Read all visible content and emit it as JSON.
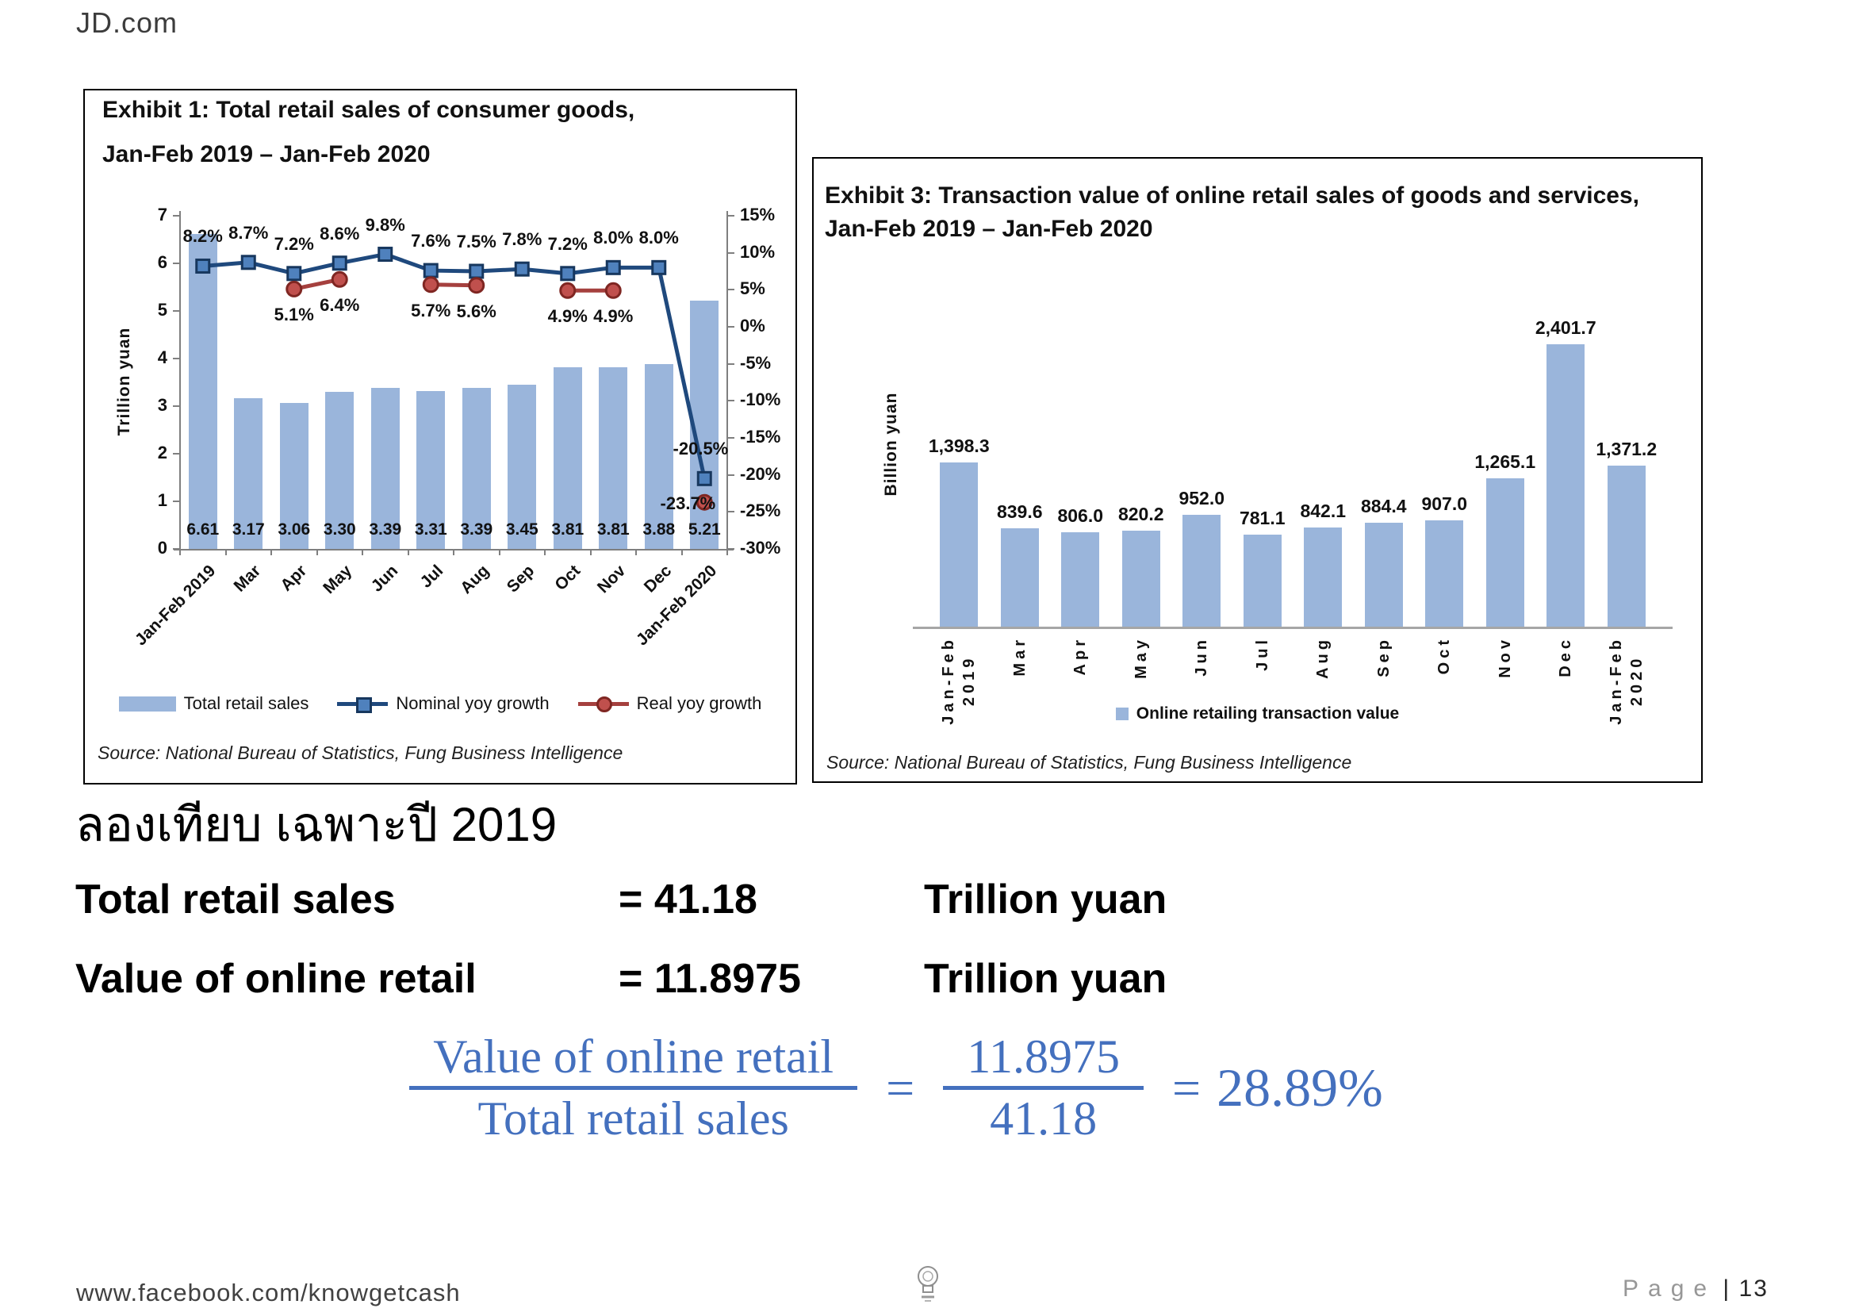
{
  "page": {
    "brand": "JD.com",
    "thai_heading": "ลองเทียบ เฉพาะปี 2019",
    "comparison": {
      "rows": [
        {
          "label": "Total retail sales",
          "value": "= 41.18",
          "unit": "Trillion yuan"
        },
        {
          "label": "Value of online retail",
          "value": "= 11.8975",
          "unit": "Trillion yuan"
        }
      ]
    },
    "formula": {
      "numerator": "Value of online retail",
      "denominator": "Total retail sales",
      "equals": "=",
      "value_numerator": "11.8975",
      "value_denominator": "41.18",
      "result_equals": "=",
      "result": "28.89%",
      "color": "#4470BE"
    },
    "footer": {
      "website": "www.facebook.com/knowgetcash",
      "page_label": "Page",
      "page_number": "| 13",
      "logo": "lightbulb-logo"
    }
  },
  "chart_data": [
    {
      "type": "bar+line combo",
      "title_lines": [
        "Exhibit 1: Total retail sales of consumer goods,",
        "Jan-Feb 2019 – Jan-Feb 2020"
      ],
      "categories": [
        "Jan-Feb 2019",
        "Mar",
        "Apr",
        "May",
        "Jun",
        "Jul",
        "Aug",
        "Sep",
        "Oct",
        "Nov",
        "Dec",
        "Jan-Feb 2020"
      ],
      "left_axis": {
        "label": "Trillion yuan",
        "min": 0,
        "max": 7,
        "tick_step": 1
      },
      "right_axis": {
        "min": -30,
        "max": 15,
        "tick_step": 5,
        "suffix": "%"
      },
      "bar_series": {
        "name": "Total retail sales",
        "color": "#9AB5DB",
        "values": [
          6.61,
          3.17,
          3.06,
          3.3,
          3.39,
          3.31,
          3.39,
          3.45,
          3.81,
          3.81,
          3.88,
          5.21
        ],
        "labels": [
          "6.61",
          "3.17",
          "3.06",
          "3.30",
          "3.39",
          "3.31",
          "3.39",
          "3.45",
          "3.81",
          "3.81",
          "3.88",
          "5.21"
        ]
      },
      "line_series": [
        {
          "name": "Nominal yoy growth",
          "color": "#1F497D",
          "marker": "square",
          "marker_fill": "#4F81BD",
          "marker_edge": "#17375E",
          "values": [
            8.2,
            8.7,
            7.2,
            8.6,
            9.8,
            7.6,
            7.5,
            7.8,
            7.2,
            8.0,
            8.0,
            -20.5
          ],
          "labels": [
            "8.2%",
            "8.7%",
            "7.2%",
            "8.6%",
            "9.8%",
            "7.6%",
            "7.5%",
            "7.8%",
            "7.2%",
            "8.0%",
            "8.0%",
            "-20.5%"
          ]
        },
        {
          "name": "Real yoy growth",
          "color": "#A5403E",
          "marker": "circle",
          "marker_fill": "#C0504D",
          "marker_edge": "#7F2622",
          "values": [
            null,
            null,
            5.1,
            6.4,
            null,
            5.7,
            5.6,
            null,
            4.9,
            4.9,
            null,
            -23.7
          ],
          "labels": [
            null,
            null,
            "5.1%",
            "6.4%",
            null,
            "5.7%",
            "5.6%",
            null,
            "4.9%",
            "4.9%",
            null,
            "-23.7%"
          ]
        }
      ],
      "legend": [
        "Total retail sales",
        "Nominal yoy growth",
        "Real yoy growth"
      ],
      "grid": false,
      "source": "Source: National Bureau of Statistics, Fung Business Intelligence"
    },
    {
      "type": "bar",
      "title_lines": [
        "Exhibit 3: Transaction value of online retail sales of goods and services,",
        "Jan-Feb 2019 – Jan-Feb 2020"
      ],
      "ylabel": "Billion yuan",
      "ylim": [
        0,
        2600
      ],
      "categories": [
        "Jan-Feb\n2019",
        "Mar",
        "Apr",
        "May",
        "Jun",
        "Jul",
        "Aug",
        "Sep",
        "Oct",
        "Nov",
        "Dec",
        "Jan-Feb\n2020"
      ],
      "values": [
        1398.3,
        839.6,
        806.0,
        820.2,
        952.0,
        781.1,
        842.1,
        884.4,
        907.0,
        1265.1,
        2401.7,
        1371.2
      ],
      "value_labels": [
        "1,398.3",
        "839.6",
        "806.0",
        "820.2",
        "952.0",
        "781.1",
        "842.1",
        "884.4",
        "907.0",
        "1,265.1",
        "2,401.7",
        "1,371.2"
      ],
      "bar_color": "#9AB5DB",
      "legend": [
        "Online retailing transaction value"
      ],
      "grid": false,
      "source": "Source: National Bureau of Statistics, Fung Business Intelligence"
    }
  ]
}
